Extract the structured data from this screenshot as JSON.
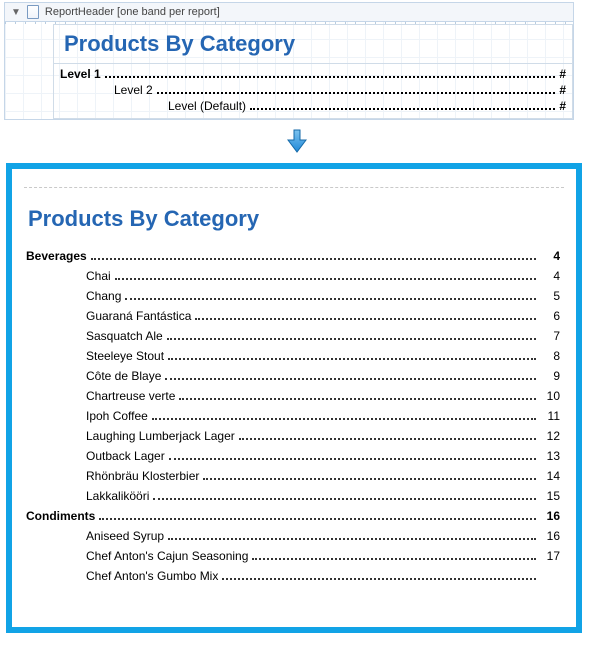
{
  "colors": {
    "accent_blue": "#11a3e6",
    "title_blue": "#2566b3",
    "designer_border": "#c5d6e8",
    "grid": "#eef3f8"
  },
  "designer": {
    "band_label": "ReportHeader [one band per report]",
    "title": "Products By Category",
    "template_levels": [
      {
        "label": "Level 1",
        "page_placeholder": "#"
      },
      {
        "label": "Level 2",
        "page_placeholder": "#"
      },
      {
        "label": "Level (Default)",
        "page_placeholder": "#"
      }
    ]
  },
  "preview": {
    "title": "Products By Category",
    "toc": [
      {
        "group": "Beverages",
        "page": 4,
        "items": [
          {
            "label": "Chai",
            "page": 4
          },
          {
            "label": "Chang",
            "page": 5
          },
          {
            "label": "Guaraná Fantástica",
            "page": 6
          },
          {
            "label": "Sasquatch Ale",
            "page": 7
          },
          {
            "label": "Steeleye Stout",
            "page": 8
          },
          {
            "label": "Côte de Blaye",
            "page": 9
          },
          {
            "label": "Chartreuse verte",
            "page": 10
          },
          {
            "label": "Ipoh Coffee",
            "page": 11
          },
          {
            "label": "Laughing Lumberjack Lager",
            "page": 12
          },
          {
            "label": "Outback Lager",
            "page": 13
          },
          {
            "label": "Rhönbräu Klosterbier",
            "page": 14
          },
          {
            "label": "Lakkalikööri",
            "page": 15
          }
        ]
      },
      {
        "group": "Condiments",
        "page": 16,
        "items": [
          {
            "label": "Aniseed Syrup",
            "page": 16
          },
          {
            "label": "Chef Anton's Cajun Seasoning",
            "page": 17
          },
          {
            "label": "Chef Anton's Gumbo Mix",
            "page": ""
          }
        ]
      }
    ]
  }
}
